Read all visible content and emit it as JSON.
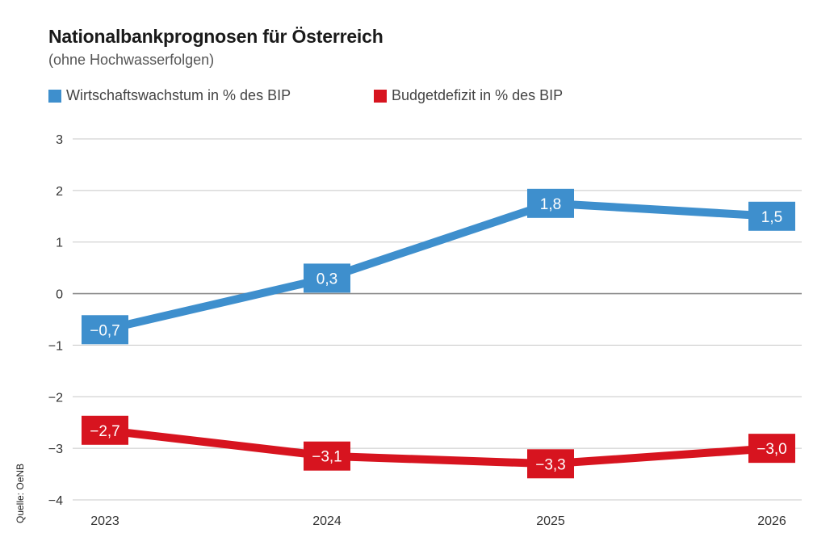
{
  "chart_data": {
    "type": "line",
    "title": "Nationalbankprognosen für Österreich",
    "subtitle": "(ohne Hochwasserfolgen)",
    "source": "Quelle: OeNB",
    "categories": [
      "2023",
      "2024",
      "2025",
      "2026"
    ],
    "ylim": [
      -4,
      3
    ],
    "yticks": [
      3,
      2,
      1,
      0,
      -1,
      -2,
      -3,
      -4
    ],
    "ytick_labels": [
      "3",
      "2",
      "1",
      "0",
      "−1",
      "−2",
      "−3",
      "−4"
    ],
    "grid": true,
    "legend_position": "top-left",
    "series": [
      {
        "name": "Wirtschaftswachstum in % des BIP",
        "color": "#3e8fcd",
        "values": [
          -0.7,
          0.3,
          1.75,
          1.5
        ],
        "labels": [
          "−0,7",
          "0,3",
          "1,8",
          "1,5"
        ]
      },
      {
        "name": "Budgetdefizit in % des BIP",
        "color": "#d7141f",
        "values": [
          -2.65,
          -3.15,
          -3.3,
          -3.0
        ],
        "labels": [
          "−2,7",
          "−3,1",
          "−3,3",
          "−3,0"
        ]
      }
    ]
  }
}
